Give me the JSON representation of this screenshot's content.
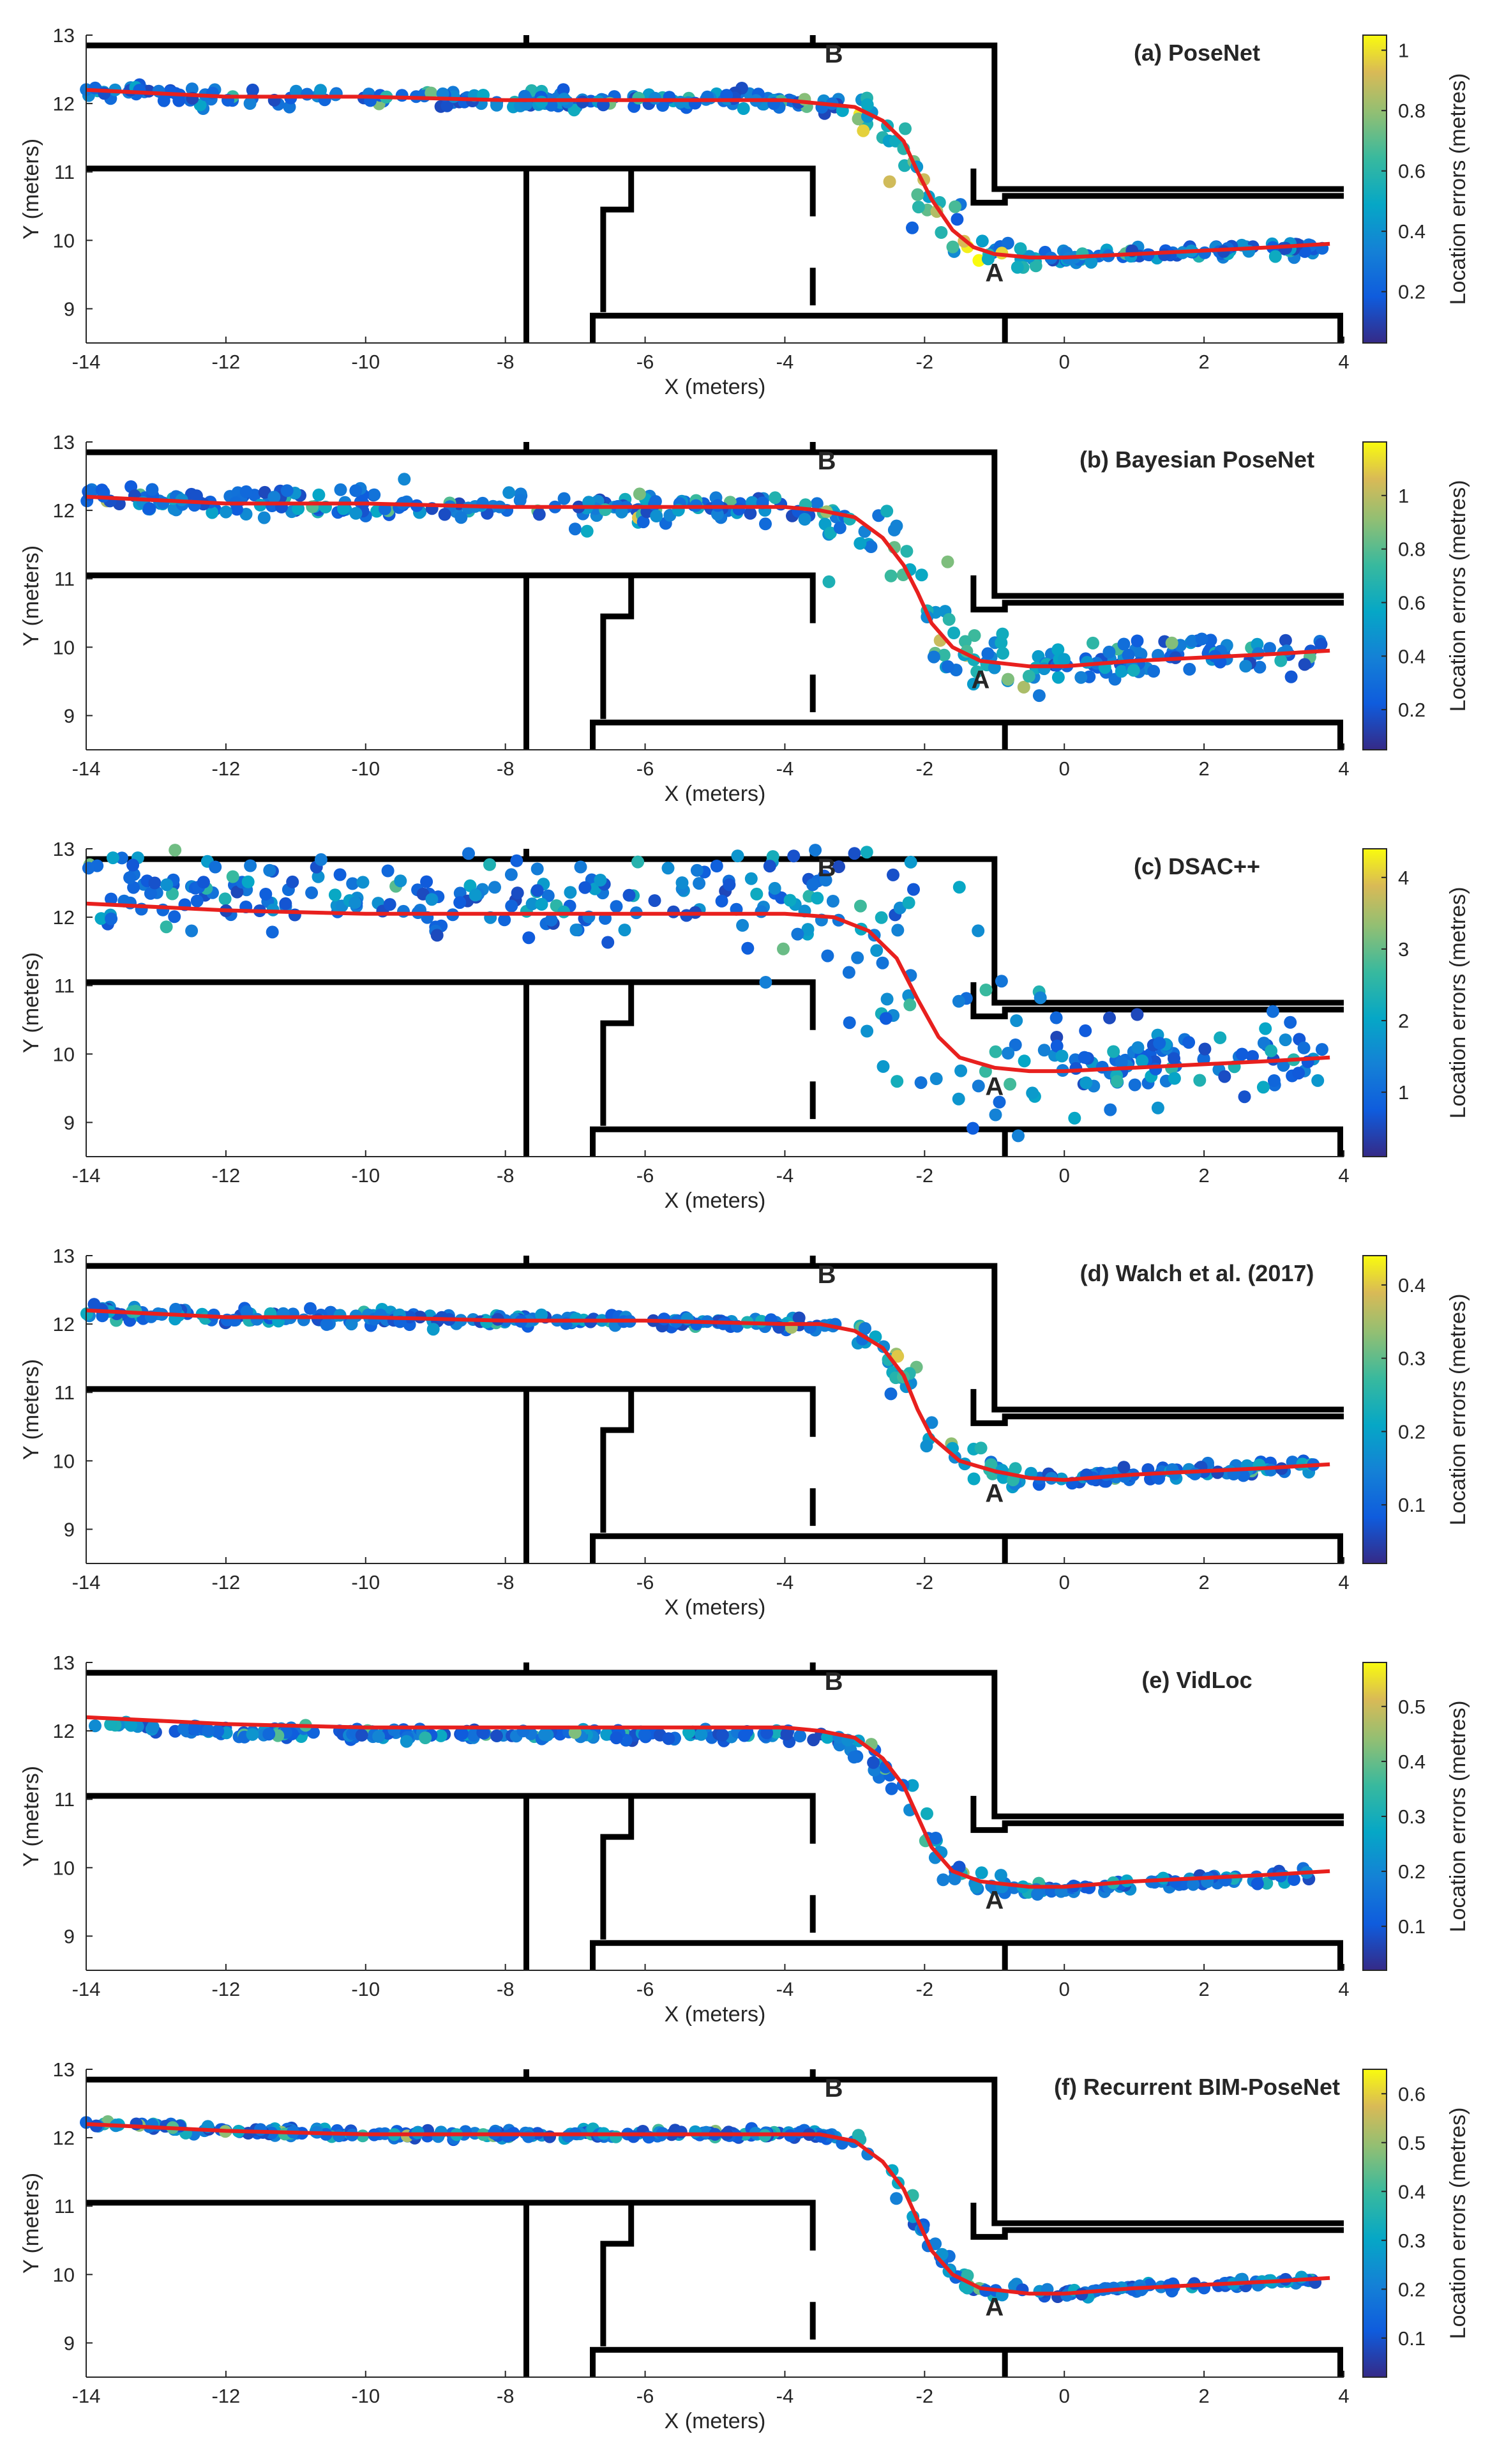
{
  "chart_data": [
    {
      "type": "scatter",
      "title": "(a) PoseNet",
      "xlabel": "X (meters)",
      "ylabel": "Y (meters)",
      "colorbar_label": "Location errors (metres)",
      "colorbar_ticks": [
        0.2,
        0.4,
        0.6,
        0.8,
        1
      ],
      "colorbar_range": [
        0.03,
        1.05
      ],
      "xlim": [
        -14,
        4
      ],
      "ylim": [
        8.5,
        13
      ],
      "xticks": [
        -14,
        -12,
        -10,
        -8,
        -6,
        -4,
        -2,
        0,
        2,
        4
      ],
      "yticks": [
        9,
        10,
        11,
        12,
        13
      ],
      "labels": [
        {
          "text": "A",
          "x": -1.0,
          "y": 9.4
        },
        {
          "text": "B",
          "x": -3.3,
          "y": 12.6
        }
      ],
      "ground_truth": {
        "color": "#e8201e",
        "points": [
          [
            -14,
            12.2
          ],
          [
            -12,
            12.1
          ],
          [
            -10,
            12.1
          ],
          [
            -8,
            12.05
          ],
          [
            -6,
            12.05
          ],
          [
            -4,
            12.05
          ],
          [
            -3.5,
            12.0
          ],
          [
            -3,
            11.95
          ],
          [
            -2.6,
            11.75
          ],
          [
            -2.3,
            11.45
          ],
          [
            -2.1,
            11.0
          ],
          [
            -1.9,
            10.6
          ],
          [
            -1.6,
            10.15
          ],
          [
            -1.3,
            9.9
          ],
          [
            -1.0,
            9.8
          ],
          [
            -0.5,
            9.75
          ],
          [
            0,
            9.75
          ],
          [
            1,
            9.8
          ],
          [
            2,
            9.85
          ],
          [
            3,
            9.9
          ],
          [
            3.8,
            9.95
          ]
        ]
      },
      "scatter": {
        "count": 330,
        "noise": 0.06,
        "vmax": 1.05,
        "outlier_boost": 0.45,
        "seed": 11
      }
    },
    {
      "type": "scatter",
      "title": "(b) Bayesian PoseNet",
      "xlabel": "X (meters)",
      "ylabel": "Y (meters)",
      "colorbar_label": "Location errors (metres)",
      "colorbar_ticks": [
        0.2,
        0.4,
        0.6,
        0.8,
        1
      ],
      "colorbar_range": [
        0.05,
        1.2
      ],
      "xlim": [
        -14,
        4
      ],
      "ylim": [
        8.5,
        13
      ],
      "xticks": [
        -14,
        -12,
        -10,
        -8,
        -6,
        -4,
        -2,
        0,
        2,
        4
      ],
      "yticks": [
        9,
        10,
        11,
        12,
        13
      ],
      "labels": [
        {
          "text": "A",
          "x": -1.2,
          "y": 9.4
        },
        {
          "text": "B",
          "x": -3.4,
          "y": 12.6
        }
      ],
      "ground_truth": {
        "color": "#e8201e",
        "points": [
          [
            -14,
            12.2
          ],
          [
            -12,
            12.1
          ],
          [
            -10,
            12.1
          ],
          [
            -8,
            12.05
          ],
          [
            -6,
            12.05
          ],
          [
            -4,
            12.05
          ],
          [
            -3.5,
            12.0
          ],
          [
            -3,
            11.9
          ],
          [
            -2.6,
            11.6
          ],
          [
            -2.3,
            11.2
          ],
          [
            -2.1,
            10.8
          ],
          [
            -1.9,
            10.35
          ],
          [
            -1.6,
            10.0
          ],
          [
            -1.2,
            9.8
          ],
          [
            -0.5,
            9.72
          ],
          [
            0,
            9.72
          ],
          [
            1,
            9.8
          ],
          [
            2,
            9.85
          ],
          [
            3,
            9.9
          ],
          [
            3.8,
            9.95
          ]
        ]
      },
      "scatter": {
        "count": 360,
        "noise": 0.12,
        "vmax": 1.2,
        "outlier_boost": 0.3,
        "seed": 23
      }
    },
    {
      "type": "scatter",
      "title": "(c) DSAC++",
      "xlabel": "X (meters)",
      "ylabel": "Y (meters)",
      "colorbar_label": "Location errors (metres)",
      "colorbar_ticks": [
        1,
        2,
        3,
        4
      ],
      "colorbar_range": [
        0.1,
        4.4
      ],
      "xlim": [
        -14,
        4
      ],
      "ylim": [
        8.5,
        13
      ],
      "xticks": [
        -14,
        -12,
        -10,
        -8,
        -6,
        -4,
        -2,
        0,
        2,
        4
      ],
      "yticks": [
        9,
        10,
        11,
        12,
        13
      ],
      "labels": [
        {
          "text": "A",
          "x": -1.0,
          "y": 9.4
        },
        {
          "text": "B",
          "x": -3.4,
          "y": 12.6
        }
      ],
      "ground_truth": {
        "color": "#e8201e",
        "points": [
          [
            -14,
            12.2
          ],
          [
            -12,
            12.1
          ],
          [
            -10,
            12.05
          ],
          [
            -8,
            12.05
          ],
          [
            -6,
            12.05
          ],
          [
            -4,
            12.05
          ],
          [
            -3.3,
            12.0
          ],
          [
            -2.8,
            11.8
          ],
          [
            -2.4,
            11.4
          ],
          [
            -2.1,
            10.8
          ],
          [
            -1.8,
            10.25
          ],
          [
            -1.5,
            9.95
          ],
          [
            -1.0,
            9.8
          ],
          [
            -0.5,
            9.75
          ],
          [
            0,
            9.75
          ],
          [
            1,
            9.8
          ],
          [
            2,
            9.85
          ],
          [
            3,
            9.9
          ],
          [
            3.8,
            9.95
          ]
        ]
      },
      "scatter": {
        "count": 360,
        "noise": 0.28,
        "vmax": 4.4,
        "outlier_boost": 0.15,
        "shift": 0.25,
        "seed": 37
      }
    },
    {
      "type": "scatter",
      "title": "(d) Walch et al. (2017)",
      "xlabel": "X (meters)",
      "ylabel": "Y (meters)",
      "colorbar_label": "Location errors (metres)",
      "colorbar_ticks": [
        0.1,
        0.2,
        0.3,
        0.4
      ],
      "colorbar_range": [
        0.02,
        0.44
      ],
      "xlim": [
        -14,
        4
      ],
      "ylim": [
        8.5,
        13
      ],
      "xticks": [
        -14,
        -12,
        -10,
        -8,
        -6,
        -4,
        -2,
        0,
        2,
        4
      ],
      "yticks": [
        9,
        10,
        11,
        12,
        13
      ],
      "labels": [
        {
          "text": "A",
          "x": -1.0,
          "y": 9.4
        },
        {
          "text": "B",
          "x": -3.4,
          "y": 12.6
        }
      ],
      "ground_truth": {
        "color": "#e8201e",
        "points": [
          [
            -14,
            12.2
          ],
          [
            -12,
            12.1
          ],
          [
            -10,
            12.1
          ],
          [
            -8,
            12.05
          ],
          [
            -6,
            12.05
          ],
          [
            -4,
            12.0
          ],
          [
            -3.5,
            12.0
          ],
          [
            -3,
            11.9
          ],
          [
            -2.6,
            11.65
          ],
          [
            -2.3,
            11.25
          ],
          [
            -2.1,
            10.75
          ],
          [
            -1.9,
            10.35
          ],
          [
            -1.5,
            10.0
          ],
          [
            -1.0,
            9.85
          ],
          [
            -0.5,
            9.75
          ],
          [
            0,
            9.72
          ],
          [
            1,
            9.8
          ],
          [
            2,
            9.85
          ],
          [
            3,
            9.9
          ],
          [
            3.8,
            9.95
          ]
        ]
      },
      "scatter": {
        "count": 340,
        "noise": 0.05,
        "vmax": 0.44,
        "outlier_boost": 0.35,
        "seed": 41
      }
    },
    {
      "type": "scatter",
      "title": "(e) VidLoc",
      "xlabel": "X (meters)",
      "ylabel": "Y (meters)",
      "colorbar_label": "Location errors (metres)",
      "colorbar_ticks": [
        0.1,
        0.2,
        0.3,
        0.4,
        0.5
      ],
      "colorbar_range": [
        0.02,
        0.58
      ],
      "xlim": [
        -14,
        4
      ],
      "ylim": [
        8.5,
        13
      ],
      "xticks": [
        -14,
        -12,
        -10,
        -8,
        -6,
        -4,
        -2,
        0,
        2,
        4
      ],
      "yticks": [
        9,
        10,
        11,
        12,
        13
      ],
      "labels": [
        {
          "text": "A",
          "x": -1.0,
          "y": 9.4
        },
        {
          "text": "B",
          "x": -3.3,
          "y": 12.6
        }
      ],
      "ground_truth": {
        "color": "#e8201e",
        "points": [
          [
            -14,
            12.2
          ],
          [
            -12,
            12.1
          ],
          [
            -10,
            12.05
          ],
          [
            -8,
            12.05
          ],
          [
            -6,
            12.05
          ],
          [
            -4,
            12.05
          ],
          [
            -3.5,
            12.0
          ],
          [
            -3,
            11.9
          ],
          [
            -2.6,
            11.6
          ],
          [
            -2.3,
            11.2
          ],
          [
            -2.1,
            10.75
          ],
          [
            -1.9,
            10.3
          ],
          [
            -1.6,
            9.95
          ],
          [
            -1.2,
            9.8
          ],
          [
            -0.5,
            9.72
          ],
          [
            0,
            9.72
          ],
          [
            1,
            9.8
          ],
          [
            2,
            9.85
          ],
          [
            3,
            9.9
          ],
          [
            3.8,
            9.95
          ]
        ]
      },
      "scatter": {
        "count": 320,
        "noise": 0.04,
        "vmax": 0.58,
        "outlier_boost": 0.2,
        "shift": -0.1,
        "seed": 53
      }
    },
    {
      "type": "scatter",
      "title": "(f) Recurrent BIM-PoseNet",
      "xlabel": "X (meters)",
      "ylabel": "Y (meters)",
      "colorbar_label": "Location errors (metres)",
      "colorbar_ticks": [
        0.1,
        0.2,
        0.3,
        0.4,
        0.5,
        0.6
      ],
      "colorbar_range": [
        0.02,
        0.65
      ],
      "xlim": [
        -14,
        4
      ],
      "ylim": [
        8.5,
        13
      ],
      "xticks": [
        -14,
        -12,
        -10,
        -8,
        -6,
        -4,
        -2,
        0,
        2,
        4
      ],
      "yticks": [
        9,
        10,
        11,
        12,
        13
      ],
      "labels": [
        {
          "text": "A",
          "x": -1.0,
          "y": 9.4
        },
        {
          "text": "B",
          "x": -3.3,
          "y": 12.6
        }
      ],
      "ground_truth": {
        "color": "#e8201e",
        "points": [
          [
            -14,
            12.2
          ],
          [
            -12,
            12.1
          ],
          [
            -10,
            12.05
          ],
          [
            -8,
            12.05
          ],
          [
            -6,
            12.05
          ],
          [
            -4,
            12.05
          ],
          [
            -3.5,
            12.05
          ],
          [
            -3,
            11.95
          ],
          [
            -2.6,
            11.65
          ],
          [
            -2.3,
            11.25
          ],
          [
            -2.1,
            10.8
          ],
          [
            -1.9,
            10.35
          ],
          [
            -1.6,
            10.0
          ],
          [
            -1.2,
            9.8
          ],
          [
            -0.5,
            9.72
          ],
          [
            0,
            9.72
          ],
          [
            1,
            9.8
          ],
          [
            2,
            9.85
          ],
          [
            3,
            9.9
          ],
          [
            3.8,
            9.95
          ]
        ]
      },
      "scatter": {
        "count": 330,
        "noise": 0.03,
        "vmax": 0.65,
        "outlier_boost": 0.1,
        "seed": 67
      }
    }
  ],
  "floorplan": {
    "color": "#000000",
    "lines": [
      [
        [
          -14,
          12.85
        ],
        [
          -1.0,
          12.85
        ],
        [
          -1.0,
          10.75
        ],
        [
          4.0,
          10.75
        ]
      ],
      [
        [
          -14,
          11.05
        ],
        [
          -3.6,
          11.05
        ],
        [
          -3.6,
          10.35
        ]
      ],
      [
        [
          -3.6,
          9.6
        ],
        [
          -3.6,
          9.05
        ]
      ],
      [
        [
          -7.7,
          12.85
        ],
        [
          -7.7,
          13.0
        ]
      ],
      [
        [
          -3.6,
          12.85
        ],
        [
          -3.6,
          13.0
        ]
      ],
      [
        [
          -7.7,
          11.05
        ],
        [
          -7.7,
          8.5
        ]
      ],
      [
        [
          -6.2,
          11.05
        ],
        [
          -6.2,
          10.45
        ],
        [
          -6.6,
          10.45
        ],
        [
          -6.6,
          8.95
        ]
      ],
      [
        [
          -1.3,
          11.05
        ],
        [
          -1.3,
          10.55
        ],
        [
          -0.85,
          10.55
        ],
        [
          -0.85,
          10.65
        ],
        [
          4.0,
          10.65
        ]
      ],
      [
        [
          -6.75,
          8.5
        ],
        [
          -6.75,
          8.9
        ],
        [
          3.95,
          8.9
        ],
        [
          3.95,
          8.5
        ]
      ],
      [
        [
          -0.85,
          8.9
        ],
        [
          -0.85,
          8.5
        ]
      ]
    ]
  }
}
